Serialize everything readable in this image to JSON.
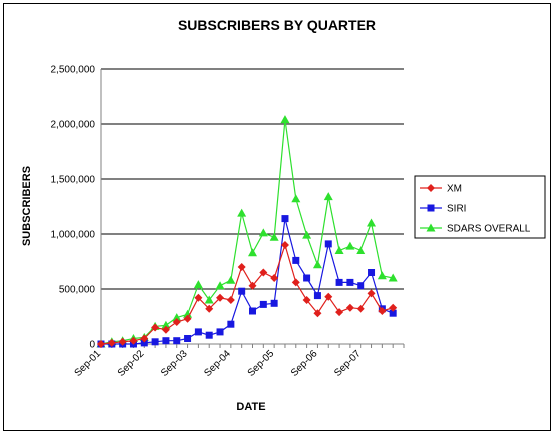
{
  "chart_data": {
    "type": "line",
    "title": "SUBSCRIBERS BY QUARTER",
    "xlabel": "DATE",
    "ylabel": "SUBSCRIBERS",
    "ylim": [
      0,
      2500000
    ],
    "yticks": [
      "0",
      "500,000",
      "1,000,000",
      "1,500,000",
      "2,000,000",
      "2,500,000"
    ],
    "x_tick_labels": [
      "Sep-01",
      "Sep-02",
      "Sep-03",
      "Sep-04",
      "Sep-05",
      "Sep-06",
      "Sep-07"
    ],
    "x": [
      "Sep-01",
      "Dec-01",
      "Mar-02",
      "Jun-02",
      "Sep-02",
      "Dec-02",
      "Mar-03",
      "Jun-03",
      "Sep-03",
      "Dec-03",
      "Mar-04",
      "Jun-04",
      "Sep-04",
      "Dec-04",
      "Mar-05",
      "Jun-05",
      "Sep-05",
      "Dec-05",
      "Mar-06",
      "Jun-06",
      "Sep-06",
      "Dec-06",
      "Mar-07",
      "Jun-07",
      "Sep-07",
      "Dec-07",
      "Mar-08",
      "Jun-08"
    ],
    "grid": "horizontal",
    "legend_position": "right",
    "series": [
      {
        "name": "XM",
        "color": "#e0201c",
        "marker": "diamond",
        "values": [
          0,
          10000,
          20000,
          30000,
          50000,
          150000,
          130000,
          200000,
          230000,
          420000,
          320000,
          420000,
          400000,
          700000,
          530000,
          650000,
          600000,
          900000,
          560000,
          400000,
          280000,
          430000,
          290000,
          330000,
          320000,
          460000,
          300000,
          330000
        ]
      },
      {
        "name": "SIRI",
        "color": "#1818e0",
        "marker": "square",
        "values": [
          0,
          0,
          0,
          0,
          10000,
          20000,
          30000,
          30000,
          50000,
          110000,
          80000,
          110000,
          180000,
          480000,
          300000,
          360000,
          370000,
          1140000,
          760000,
          600000,
          440000,
          910000,
          560000,
          560000,
          530000,
          650000,
          320000,
          280000
        ]
      },
      {
        "name": "SDARS OVERALL",
        "color": "#2ee02e",
        "marker": "triangle",
        "values": [
          0,
          20000,
          30000,
          50000,
          60000,
          160000,
          170000,
          240000,
          270000,
          540000,
          400000,
          530000,
          580000,
          1190000,
          830000,
          1010000,
          970000,
          2040000,
          1320000,
          990000,
          720000,
          1340000,
          850000,
          890000,
          850000,
          1100000,
          620000,
          600000
        ]
      }
    ]
  }
}
